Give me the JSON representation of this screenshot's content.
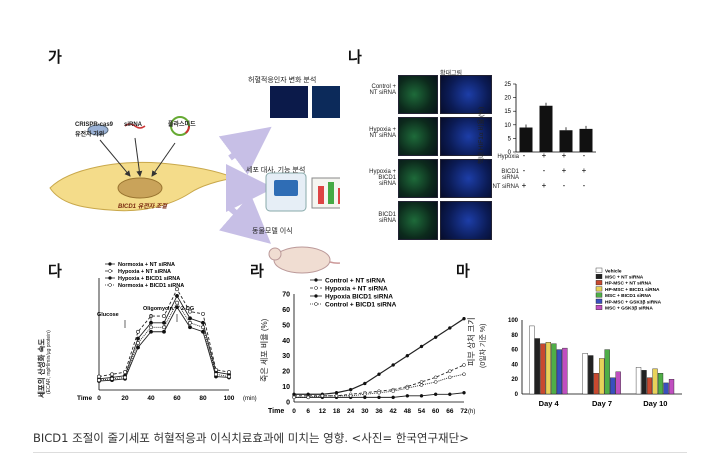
{
  "panels": {
    "ga": {
      "label": "가",
      "crispr": "CRISPR-cas9",
      "crispr_sub": "유전자 가위",
      "sirna": "siRNA",
      "plasmid": "플라스미드",
      "gene": "BICD1 유전자 조절",
      "box1_title": "허혈적응인자 변화 분석",
      "box2_title": "세포 대사, 기능 분석",
      "box3_title": "동물모델 이식"
    },
    "na": {
      "label": "나",
      "zoom_title": "확대그림",
      "row_labels": [
        "Control + NT siRNA",
        "Hypoxia + NT siRNA",
        "Hypoxia + BICD1 siRNA",
        "BICD1 siRNA"
      ],
      "ylabel": "핵내 HIF1α 비율 (%)",
      "row_names": [
        "Hypoxia",
        "BICD1 siRNA",
        "NT siRNA"
      ],
      "signs": [
        [
          "-",
          "+",
          "+",
          "-"
        ],
        [
          "-",
          "-",
          "+",
          "+"
        ],
        [
          "+",
          "+",
          "-",
          "-"
        ]
      ]
    },
    "da": {
      "label": "다",
      "ylabel": "세포의 산성화 속도",
      "ylabel2": "(ECAR, mpH/min/μg protein)",
      "xlabel": "Time",
      "xunit": "(min)",
      "annotations": [
        "Glucose",
        "Oligomycin",
        "2-DG"
      ]
    },
    "ra": {
      "label": "라",
      "ylabel": "죽은 세포 비율 (%)",
      "xlabel": "Time",
      "xunit": "(h)"
    },
    "ma": {
      "label": "마",
      "ylabel": "피부 상처 크기",
      "ylabel2": "(0일차 기준 %)"
    }
  },
  "caption": "BICD1 조절이 줄기세포 허혈적응과 이식치료효과에 미치는 영향. <사진= 한국연구재단>",
  "chart_data": [
    {
      "type": "bar",
      "categories": [
        "1",
        "2",
        "3",
        "4"
      ],
      "values": [
        9,
        17,
        8,
        8.5
      ],
      "ylim": [
        0,
        25
      ],
      "yticks": [
        0,
        5,
        10,
        15,
        20,
        25
      ]
    },
    {
      "type": "line",
      "x": [
        0,
        10,
        20,
        30,
        40,
        50,
        60,
        70,
        80,
        90,
        100
      ],
      "series": [
        {
          "name": "Normoxia + NT siRNA",
          "values": [
            25,
            28,
            32,
            115,
            150,
            150,
            210,
            160,
            150,
            40,
            35
          ]
        },
        {
          "name": "Hypoxia + NT siRNA",
          "values": [
            30,
            35,
            40,
            130,
            165,
            165,
            225,
            175,
            170,
            45,
            40
          ]
        },
        {
          "name": "Hypoxia + BICD1 siRNA",
          "values": [
            20,
            22,
            25,
            95,
            130,
            130,
            185,
            140,
            130,
            30,
            28
          ]
        },
        {
          "name": "Normoxia + BICD1 siRNA",
          "values": [
            22,
            25,
            28,
            105,
            140,
            140,
            195,
            150,
            140,
            35,
            30
          ]
        }
      ],
      "xticks": [
        0,
        20,
        40,
        60,
        80,
        100
      ],
      "ylim": [
        0,
        250
      ]
    },
    {
      "type": "line",
      "x": [
        0,
        6,
        12,
        18,
        24,
        30,
        36,
        42,
        48,
        54,
        60,
        66,
        72
      ],
      "series": [
        {
          "name": "Control + NT siRNA",
          "values": [
            3,
            3,
            3,
            3,
            3,
            3,
            3,
            3,
            4,
            4,
            5,
            5,
            6
          ]
        },
        {
          "name": "Hypoxia + NT siRNA",
          "values": [
            4,
            4,
            4,
            4,
            5,
            6,
            7,
            8,
            10,
            13,
            16,
            20,
            24
          ]
        },
        {
          "name": "Hypoxia BICD1 siRNA",
          "values": [
            5,
            5,
            5,
            6,
            8,
            12,
            18,
            24,
            30,
            36,
            42,
            48,
            54
          ]
        },
        {
          "name": "Control + BICD1 siRNA",
          "values": [
            3,
            3,
            4,
            4,
            4,
            5,
            6,
            7,
            9,
            11,
            13,
            16,
            18
          ]
        }
      ],
      "xticks": [
        0,
        6,
        12,
        18,
        24,
        30,
        36,
        42,
        48,
        54,
        60,
        66,
        72
      ],
      "ylim": [
        0,
        70
      ],
      "yticks": [
        0,
        10,
        20,
        30,
        40,
        50,
        60,
        70
      ]
    },
    {
      "type": "bar",
      "categories": [
        "Day 4",
        "Day 7",
        "Day 10"
      ],
      "series": [
        {
          "name": "Vehicle",
          "color": "#ffffff",
          "values": [
            92,
            55,
            36
          ]
        },
        {
          "name": "MSC + NT siRNA",
          "color": "#222222",
          "values": [
            75,
            52,
            32
          ]
        },
        {
          "name": "HP-MSC + NT siRNA",
          "color": "#c8492f",
          "values": [
            68,
            28,
            22
          ]
        },
        {
          "name": "HP-MSC + BICD1 siRNA",
          "color": "#e8d25a",
          "values": [
            70,
            48,
            34
          ]
        },
        {
          "name": "MSC + BICD1 siRNA",
          "color": "#4fae47",
          "values": [
            68,
            60,
            28
          ]
        },
        {
          "name": "HP-MSC + GSK3β siRNA",
          "color": "#3a4fbf",
          "values": [
            60,
            22,
            15
          ]
        },
        {
          "name": "MSC + GSK3β siRNA",
          "color": "#c04fc0",
          "values": [
            62,
            30,
            20
          ]
        }
      ],
      "ylim": [
        0,
        100
      ],
      "yticks": [
        0,
        20,
        40,
        60,
        80,
        100
      ]
    }
  ]
}
